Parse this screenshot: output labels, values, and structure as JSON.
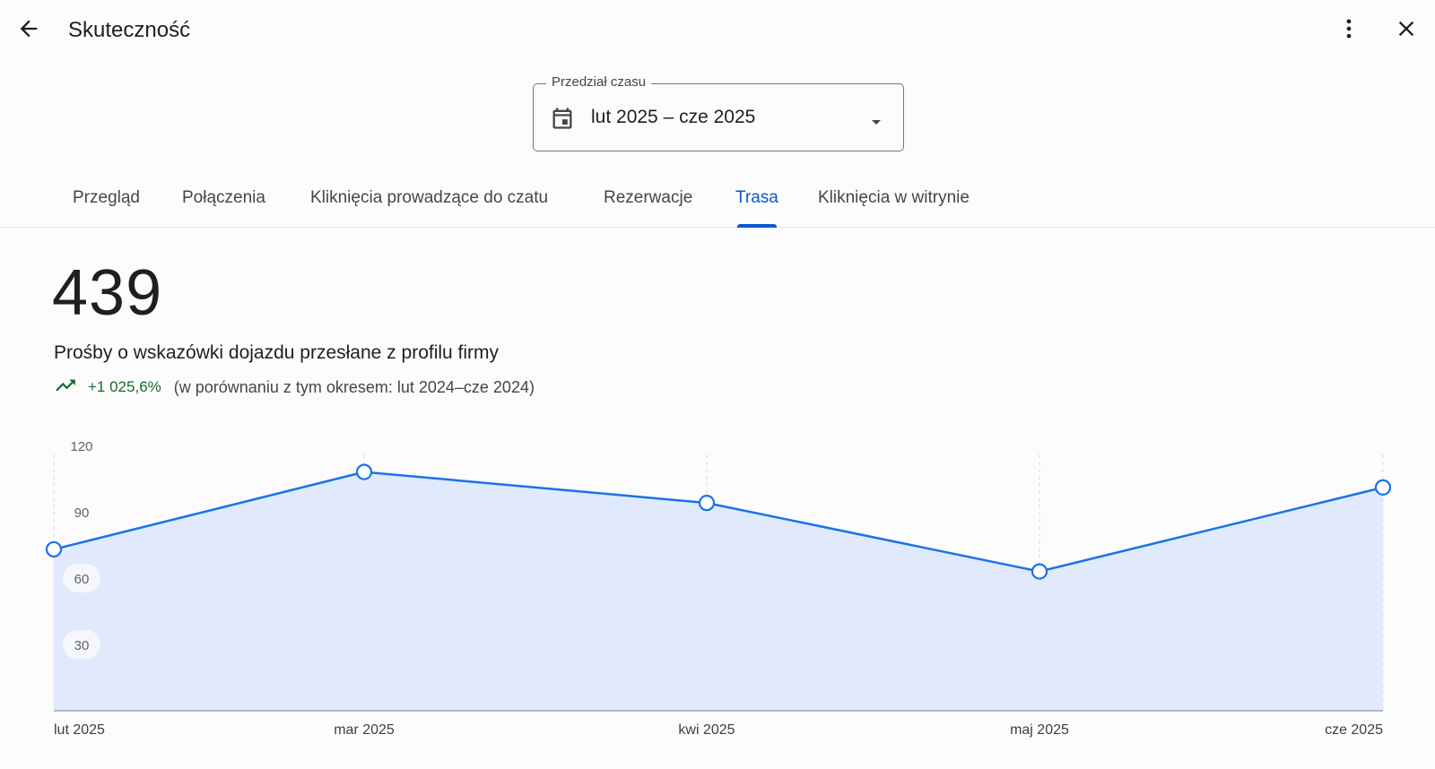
{
  "header": {
    "title": "Skuteczność",
    "icons": {
      "back": "arrow-back-icon",
      "more": "more-vert-icon",
      "close": "close-icon"
    }
  },
  "date_range": {
    "legend": "Przedział czasu",
    "value": "lut 2025 – cze 2025",
    "icons": {
      "calendar": "calendar-icon",
      "dropdown": "arrow-drop-down-icon"
    }
  },
  "tabs": [
    {
      "label": "Przegląd",
      "active": false
    },
    {
      "label": "Połączenia",
      "active": false
    },
    {
      "label": "Kliknięcia prowadzące do czatu",
      "active": false
    },
    {
      "label": "Rezerwacje",
      "active": false
    },
    {
      "label": "Trasa",
      "active": true
    },
    {
      "label": "Kliknięcia w witrynie",
      "active": false
    }
  ],
  "metric": {
    "value": "439",
    "description": "Prośby o wskazówki dojazdu przesłane z profilu firmy",
    "trend_value": "+1 025,6%",
    "trend_comparison": "(w porównaniu z tym okresem: lut 2024–cze 2024)",
    "trend_icon": "trending-up-icon"
  },
  "colors": {
    "accent": "#0b57d0",
    "line": "#1a73e8",
    "area_fill": "#e1eafd",
    "trend_positive": "#146c2e"
  },
  "chart_data": {
    "type": "area",
    "categories": [
      "lut 2025",
      "mar 2025",
      "kwi 2025",
      "maj 2025",
      "cze 2025"
    ],
    "series": [
      {
        "values": [
          73,
          108,
          94,
          63,
          101
        ]
      }
    ],
    "yticks": [
      30,
      60,
      90,
      120
    ],
    "ylim": [
      0,
      120
    ],
    "grid": "vertical dashed lines at each category",
    "markers": "hollow circles"
  }
}
